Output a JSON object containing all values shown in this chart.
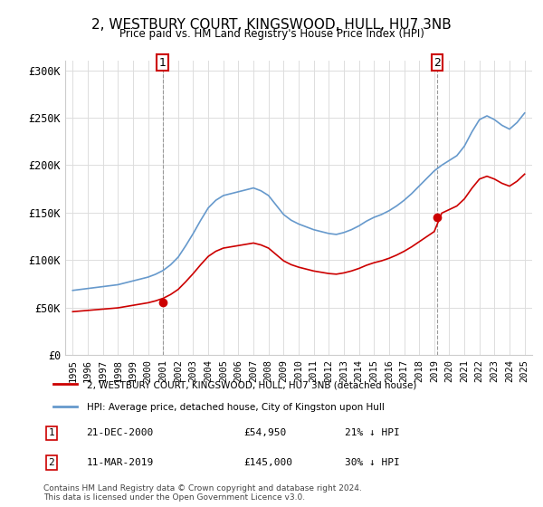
{
  "title": "2, WESTBURY COURT, KINGSWOOD, HULL, HU7 3NB",
  "subtitle": "Price paid vs. HM Land Registry's House Price Index (HPI)",
  "legend_line1": "2, WESTBURY COURT, KINGSWOOD, HULL, HU7 3NB (detached house)",
  "legend_line2": "HPI: Average price, detached house, City of Kingston upon Hull",
  "annotation1_label": "1",
  "annotation1_date": "21-DEC-2000",
  "annotation1_price": "£54,950",
  "annotation1_hpi": "21% ↓ HPI",
  "annotation2_label": "2",
  "annotation2_date": "11-MAR-2019",
  "annotation2_price": "£145,000",
  "annotation2_hpi": "30% ↓ HPI",
  "footer": "Contains HM Land Registry data © Crown copyright and database right 2024.\nThis data is licensed under the Open Government Licence v3.0.",
  "hpi_color": "#6699cc",
  "sale_color": "#cc0000",
  "sale1_x": 2000.97,
  "sale1_y": 54950,
  "sale2_x": 2019.19,
  "sale2_y": 145000,
  "ylim": [
    0,
    310000
  ],
  "xlim_left": 1994.5,
  "xlim_right": 2025.5,
  "yticks": [
    0,
    50000,
    100000,
    150000,
    200000,
    250000,
    300000
  ],
  "ytick_labels": [
    "£0",
    "£50K",
    "£100K",
    "£150K",
    "£200K",
    "£250K",
    "£300K"
  ],
  "xticks": [
    1995,
    1996,
    1997,
    1998,
    1999,
    2000,
    2001,
    2002,
    2003,
    2004,
    2005,
    2006,
    2007,
    2008,
    2009,
    2010,
    2011,
    2012,
    2013,
    2014,
    2015,
    2016,
    2017,
    2018,
    2019,
    2020,
    2021,
    2022,
    2023,
    2024,
    2025
  ]
}
